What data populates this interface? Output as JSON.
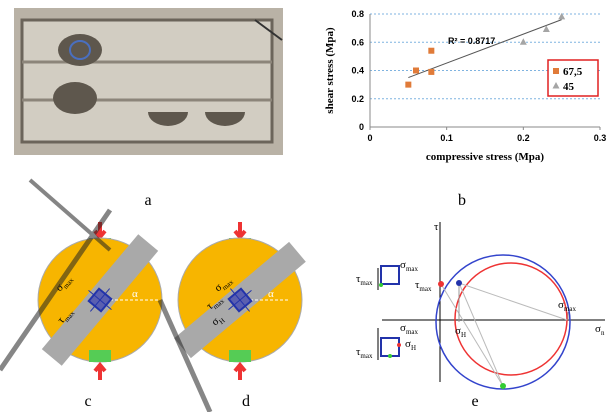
{
  "panel_labels": [
    "a",
    "b",
    "c",
    "d",
    "e"
  ],
  "chart_data": {
    "type": "scatter",
    "x_label": "compressive stress (Mpa)",
    "y_label": "shear stress (Mpa)",
    "xlim": [
      0,
      0.3
    ],
    "ylim": [
      0,
      0.8
    ],
    "xticks": [
      0,
      0.1,
      0.2,
      0.3
    ],
    "yticks": [
      0,
      0.2,
      0.4,
      0.6,
      0.8
    ],
    "grid": true,
    "legend": "right",
    "series": [
      {
        "name": "67,5",
        "color": "#e07b39",
        "marker": "square",
        "x": [
          0.05,
          0.06,
          0.08,
          0.08
        ],
        "values": [
          0.3,
          0.4,
          0.39,
          0.54
        ]
      },
      {
        "name": "45",
        "color": "#a5a5a5",
        "marker": "triangle",
        "x": [
          0.2,
          0.23,
          0.25
        ],
        "values": [
          0.6,
          0.69,
          0.78
        ]
      }
    ],
    "trendline": {
      "x": [
        0.05,
        0.25
      ],
      "values": [
        0.35,
        0.76
      ],
      "color": "#555555",
      "annotation": "R² = 0.8717"
    }
  },
  "diagram_c": {
    "sigma_max": {
      "symbol": "σ",
      "sub": "max"
    },
    "tau_max": {
      "symbol": "τ",
      "sub": "max"
    },
    "alpha": "α"
  },
  "diagram_d": {
    "sigma_max": {
      "symbol": "σ",
      "sub": "max"
    },
    "tau_max": {
      "symbol": "τ",
      "sub": "max"
    },
    "sigma_h": {
      "symbol": "σ",
      "sub": "H"
    },
    "alpha": "α"
  },
  "diagram_e": {
    "tau_axis": "τ",
    "sigma_axis": {
      "symbol": "σ",
      "sub": "n"
    },
    "tau_max": {
      "symbol": "τ",
      "sub": "max"
    },
    "sigma_h": {
      "symbol": "σ",
      "sub": "H"
    },
    "sigma_max": {
      "symbol": "σ",
      "sub": "max"
    },
    "element_top": {
      "sigma_max": {
        "symbol": "σ",
        "sub": "max"
      },
      "tau_max": {
        "symbol": "τ",
        "sub": "max"
      }
    },
    "element_bottom": {
      "sigma_max": {
        "symbol": "σ",
        "sub": "max"
      },
      "tau_max": {
        "symbol": "τ",
        "sub": "max"
      },
      "sigma_h": {
        "symbol": "σ",
        "sub": "H"
      }
    }
  }
}
